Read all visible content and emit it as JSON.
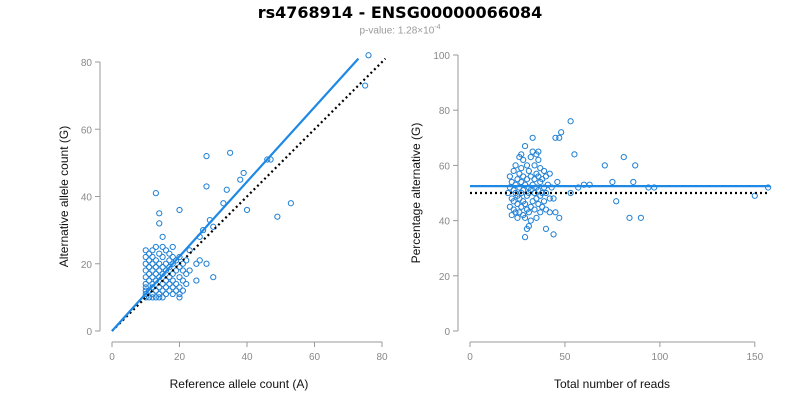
{
  "title": "rs4768914 - ENSG00000066084",
  "subtitle": {
    "prefix": "p-value: 1.28×10",
    "exponent": "-4"
  },
  "colors": {
    "points": "#1e7fd4",
    "fit_line": "#1e88e5",
    "reference_line": "#000000",
    "axis": "#9a9a9a"
  },
  "chart_data": [
    {
      "type": "scatter",
      "xlabel": "Reference allele count (A)",
      "ylabel": "Alternative allele count (G)",
      "xlim": [
        0,
        80
      ],
      "ylim": [
        0,
        80
      ],
      "xticks": [
        0,
        20,
        40,
        60,
        80
      ],
      "yticks": [
        0,
        20,
        40,
        60,
        80
      ],
      "fit_line": {
        "x": [
          0,
          73
        ],
        "y": [
          0,
          81
        ]
      },
      "reference_line": {
        "x": [
          0,
          81
        ],
        "y": [
          0,
          81
        ],
        "style": "dotted"
      },
      "points": [
        [
          10,
          10
        ],
        [
          10,
          11
        ],
        [
          10,
          12
        ],
        [
          10,
          13
        ],
        [
          10,
          14
        ],
        [
          10,
          16
        ],
        [
          10,
          18
        ],
        [
          10,
          20
        ],
        [
          10,
          22
        ],
        [
          10,
          24
        ],
        [
          11,
          10
        ],
        [
          11,
          12
        ],
        [
          11,
          15
        ],
        [
          11,
          17
        ],
        [
          11,
          19
        ],
        [
          11,
          21
        ],
        [
          11,
          23
        ],
        [
          12,
          10
        ],
        [
          12,
          11
        ],
        [
          12,
          13
        ],
        [
          12,
          14
        ],
        [
          12,
          16
        ],
        [
          12,
          18
        ],
        [
          12,
          20
        ],
        [
          12,
          22
        ],
        [
          12,
          24
        ],
        [
          13,
          10
        ],
        [
          13,
          12
        ],
        [
          13,
          15
        ],
        [
          13,
          17
        ],
        [
          13,
          19
        ],
        [
          13,
          21
        ],
        [
          13,
          25
        ],
        [
          13,
          41
        ],
        [
          14,
          10
        ],
        [
          14,
          11
        ],
        [
          14,
          13
        ],
        [
          14,
          16
        ],
        [
          14,
          18
        ],
        [
          14,
          20
        ],
        [
          14,
          23
        ],
        [
          14,
          32
        ],
        [
          14,
          35
        ],
        [
          15,
          10
        ],
        [
          15,
          12
        ],
        [
          15,
          14
        ],
        [
          15,
          17
        ],
        [
          15,
          19
        ],
        [
          15,
          22
        ],
        [
          15,
          25
        ],
        [
          15,
          28
        ],
        [
          16,
          11
        ],
        [
          16,
          13
        ],
        [
          16,
          15
        ],
        [
          16,
          18
        ],
        [
          16,
          20
        ],
        [
          16,
          24
        ],
        [
          17,
          12
        ],
        [
          17,
          14
        ],
        [
          17,
          16
        ],
        [
          17,
          19
        ],
        [
          17,
          21
        ],
        [
          17,
          23
        ],
        [
          18,
          11
        ],
        [
          18,
          13
        ],
        [
          18,
          15
        ],
        [
          18,
          17
        ],
        [
          18,
          20
        ],
        [
          18,
          22
        ],
        [
          18,
          25
        ],
        [
          19,
          12
        ],
        [
          19,
          14
        ],
        [
          19,
          18
        ],
        [
          19,
          21
        ],
        [
          20,
          10
        ],
        [
          20,
          11
        ],
        [
          20,
          13
        ],
        [
          20,
          16
        ],
        [
          20,
          19
        ],
        [
          20,
          22
        ],
        [
          20,
          36
        ],
        [
          21,
          12
        ],
        [
          21,
          15
        ],
        [
          21,
          18
        ],
        [
          21,
          20
        ],
        [
          22,
          14
        ],
        [
          22,
          17
        ],
        [
          22,
          21
        ],
        [
          23,
          18
        ],
        [
          23,
          24
        ],
        [
          25,
          15
        ],
        [
          25,
          20
        ],
        [
          26,
          21
        ],
        [
          26,
          28
        ],
        [
          27,
          30
        ],
        [
          28,
          20
        ],
        [
          28,
          43
        ],
        [
          28,
          52
        ],
        [
          29,
          33
        ],
        [
          30,
          16
        ],
        [
          30,
          31
        ],
        [
          33,
          38
        ],
        [
          34,
          42
        ],
        [
          35,
          53
        ],
        [
          38,
          45
        ],
        [
          39,
          47
        ],
        [
          40,
          36
        ],
        [
          46,
          51
        ],
        [
          47,
          51
        ],
        [
          49,
          34
        ],
        [
          53,
          38
        ],
        [
          75,
          73
        ],
        [
          76,
          82
        ]
      ]
    },
    {
      "type": "scatter",
      "xlabel": "Total number of reads",
      "ylabel": "Percentage alternative (G)",
      "xlim": [
        0,
        158
      ],
      "ylim": [
        0,
        100
      ],
      "xticks": [
        0,
        50,
        100,
        150
      ],
      "yticks": [
        0,
        20,
        40,
        60,
        80,
        100
      ],
      "fit_line": {
        "x": [
          0,
          158
        ],
        "y": [
          52.5,
          52.5
        ]
      },
      "reference_line": {
        "x": [
          0,
          158
        ],
        "y": [
          50,
          50
        ],
        "style": "dotted"
      },
      "points": [
        [
          20,
          50
        ],
        [
          21,
          45
        ],
        [
          21,
          52
        ],
        [
          21,
          56
        ],
        [
          22,
          42
        ],
        [
          22,
          48
        ],
        [
          22,
          54
        ],
        [
          23,
          44
        ],
        [
          23,
          47
        ],
        [
          23,
          51
        ],
        [
          23,
          58
        ],
        [
          24,
          43
        ],
        [
          24,
          50
        ],
        [
          24,
          53
        ],
        [
          24,
          60
        ],
        [
          25,
          41
        ],
        [
          25,
          46
        ],
        [
          25,
          49
        ],
        [
          25,
          55
        ],
        [
          26,
          43
        ],
        [
          26,
          48
        ],
        [
          26,
          52
        ],
        [
          26,
          57
        ],
        [
          26,
          63
        ],
        [
          27,
          45
        ],
        [
          27,
          50
        ],
        [
          27,
          54
        ],
        [
          27,
          59
        ],
        [
          27,
          64
        ],
        [
          28,
          42
        ],
        [
          28,
          47
        ],
        [
          28,
          51
        ],
        [
          28,
          56
        ],
        [
          28,
          62
        ],
        [
          29,
          34
        ],
        [
          29,
          41
        ],
        [
          29,
          46
        ],
        [
          29,
          53
        ],
        [
          29,
          67
        ],
        [
          30,
          37
        ],
        [
          30,
          44
        ],
        [
          30,
          49
        ],
        [
          30,
          55
        ],
        [
          30,
          60
        ],
        [
          31,
          38
        ],
        [
          31,
          43
        ],
        [
          31,
          50
        ],
        [
          31,
          52
        ],
        [
          31,
          58
        ],
        [
          32,
          40
        ],
        [
          32,
          45
        ],
        [
          32,
          51
        ],
        [
          32,
          56
        ],
        [
          32,
          63
        ],
        [
          33,
          47
        ],
        [
          33,
          53
        ],
        [
          33,
          65
        ],
        [
          33,
          70
        ],
        [
          34,
          44
        ],
        [
          34,
          50
        ],
        [
          34,
          55
        ],
        [
          34,
          60
        ],
        [
          35,
          41
        ],
        [
          35,
          48
        ],
        [
          35,
          52
        ],
        [
          35,
          57
        ],
        [
          35,
          64
        ],
        [
          36,
          46
        ],
        [
          36,
          51
        ],
        [
          36,
          56
        ],
        [
          36,
          62
        ],
        [
          36,
          65
        ],
        [
          37,
          43
        ],
        [
          37,
          49
        ],
        [
          37,
          54
        ],
        [
          37,
          59
        ],
        [
          38,
          45
        ],
        [
          38,
          50
        ],
        [
          38,
          55
        ],
        [
          39,
          47
        ],
        [
          39,
          52
        ],
        [
          39,
          58
        ],
        [
          40,
          37
        ],
        [
          40,
          44
        ],
        [
          40,
          50
        ],
        [
          40,
          56
        ],
        [
          41,
          53
        ],
        [
          42,
          43
        ],
        [
          42,
          48
        ],
        [
          42,
          57
        ],
        [
          43,
          52
        ],
        [
          44,
          35
        ],
        [
          44,
          48
        ],
        [
          45,
          43
        ],
        [
          46,
          54
        ],
        [
          47,
          41
        ],
        [
          45,
          70
        ],
        [
          47,
          70
        ],
        [
          48,
          72
        ],
        [
          53,
          76
        ],
        [
          55,
          64
        ],
        [
          53,
          50
        ],
        [
          57,
          52
        ],
        [
          60,
          53
        ],
        [
          63,
          53
        ],
        [
          71,
          60
        ],
        [
          75,
          54
        ],
        [
          77,
          47
        ],
        [
          81,
          63
        ],
        [
          84,
          41
        ],
        [
          86,
          54
        ],
        [
          87,
          60
        ],
        [
          90,
          41
        ],
        [
          94,
          52
        ],
        [
          97,
          52
        ],
        [
          150,
          49
        ],
        [
          157,
          52
        ]
      ]
    }
  ]
}
